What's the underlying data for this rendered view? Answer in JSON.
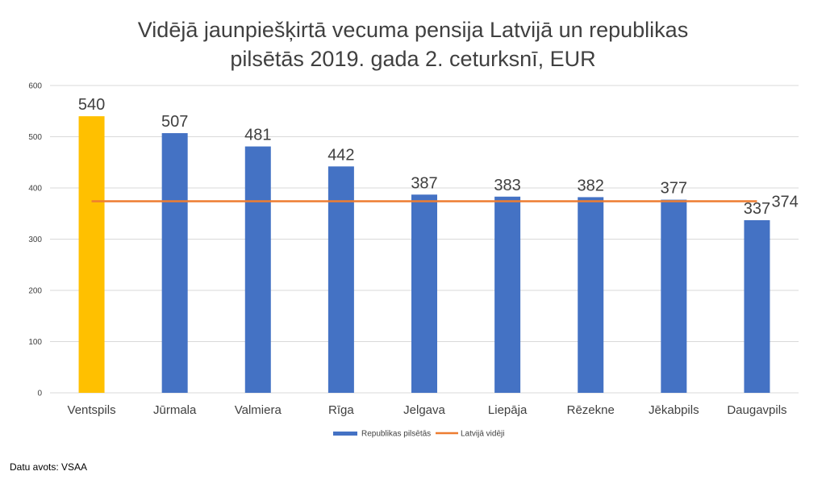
{
  "chart_data": {
    "type": "bar",
    "title_lines": [
      "Vidējā jaunpiešķirtā vecuma pensija Latvijā un republikas",
      "pilsētās 2019. gada 2. ceturksnī, EUR"
    ],
    "categories": [
      "Ventspils",
      "Jūrmala",
      "Valmiera",
      "Rīga",
      "Jelgava",
      "Liepāja",
      "Rēzekne",
      "Jēkabpils",
      "Daugavpils"
    ],
    "series": [
      {
        "name": "Republikas pilsētās",
        "type": "bar",
        "values": [
          540,
          507,
          481,
          442,
          387,
          383,
          382,
          377,
          337
        ]
      },
      {
        "name": "Latvijā vidēji",
        "type": "line",
        "value": 374
      }
    ],
    "highlight_index": 0,
    "ylim": [
      0,
      600
    ],
    "yticks": [
      0,
      100,
      200,
      300,
      400,
      500,
      600
    ],
    "grid": true,
    "legend_position": "bottom",
    "colors": {
      "bar": "#4472C4",
      "highlight": "#FFC000",
      "line": "#ED7D31",
      "grid": "#D9D9D9",
      "text": "#404040"
    }
  },
  "source_note": "Datu avots: VSAA"
}
